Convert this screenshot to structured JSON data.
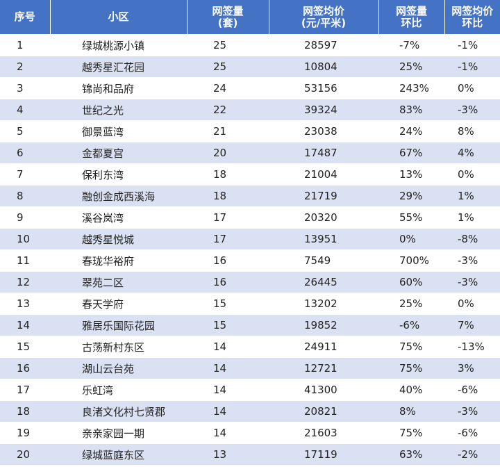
{
  "headers": {
    "rank": "序号",
    "community": "小区",
    "count_line1": "网签量",
    "count_line2": "(套)",
    "price_line1": "网签均价",
    "price_line2": "(元/平米)",
    "count_mom_line1": "网签量",
    "count_mom_line2": "环比",
    "price_mom_line1": "网签均价",
    "price_mom_line2": "环比"
  },
  "rows": [
    {
      "rank": "1",
      "name": "绿城桃源小镇",
      "count": "25",
      "price": "28597",
      "count_mom": "-7%",
      "price_mom": "-1%"
    },
    {
      "rank": "2",
      "name": "越秀星汇花园",
      "count": "25",
      "price": "10804",
      "count_mom": "25%",
      "price_mom": "-1%"
    },
    {
      "rank": "3",
      "name": "锦尚和品府",
      "count": "24",
      "price": "53156",
      "count_mom": "243%",
      "price_mom": "0%"
    },
    {
      "rank": "4",
      "name": "世纪之光",
      "count": "22",
      "price": "39324",
      "count_mom": "83%",
      "price_mom": "-3%"
    },
    {
      "rank": "5",
      "name": "御景蓝湾",
      "count": "21",
      "price": "23038",
      "count_mom": "24%",
      "price_mom": "8%"
    },
    {
      "rank": "6",
      "name": "金都夏宫",
      "count": "20",
      "price": "17487",
      "count_mom": "67%",
      "price_mom": "4%"
    },
    {
      "rank": "7",
      "name": "保利东湾",
      "count": "18",
      "price": "21004",
      "count_mom": "13%",
      "price_mom": "0%"
    },
    {
      "rank": "8",
      "name": "融创金成西溪海",
      "count": "18",
      "price": "21719",
      "count_mom": "29%",
      "price_mom": "1%"
    },
    {
      "rank": "9",
      "name": "溪谷岚湾",
      "count": "17",
      "price": "20320",
      "count_mom": "55%",
      "price_mom": "1%"
    },
    {
      "rank": "10",
      "name": "越秀星悦城",
      "count": "17",
      "price": "13951",
      "count_mom": "0%",
      "price_mom": "-8%"
    },
    {
      "rank": "11",
      "name": "春珑华裕府",
      "count": "16",
      "price": "7549",
      "count_mom": "700%",
      "price_mom": "-3%"
    },
    {
      "rank": "12",
      "name": "翠苑二区",
      "count": "16",
      "price": "26445",
      "count_mom": "60%",
      "price_mom": "-3%"
    },
    {
      "rank": "13",
      "name": "春天学府",
      "count": "15",
      "price": "13202",
      "count_mom": "25%",
      "price_mom": "0%"
    },
    {
      "rank": "14",
      "name": "雅居乐国际花园",
      "count": "15",
      "price": "19852",
      "count_mom": "-6%",
      "price_mom": "7%"
    },
    {
      "rank": "15",
      "name": "古荡新村东区",
      "count": "14",
      "price": "24911",
      "count_mom": "75%",
      "price_mom": "-13%"
    },
    {
      "rank": "16",
      "name": "湖山云台苑",
      "count": "14",
      "price": "12721",
      "count_mom": "75%",
      "price_mom": "3%"
    },
    {
      "rank": "17",
      "name": "乐虹湾",
      "count": "14",
      "price": "41300",
      "count_mom": "40%",
      "price_mom": "-6%"
    },
    {
      "rank": "18",
      "name": "良渚文化村七贤郡",
      "count": "14",
      "price": "20821",
      "count_mom": "8%",
      "price_mom": "-3%"
    },
    {
      "rank": "19",
      "name": "亲亲家园一期",
      "count": "14",
      "price": "21603",
      "count_mom": "75%",
      "price_mom": "-6%"
    },
    {
      "rank": "20",
      "name": "绿城蓝庭东区",
      "count": "13",
      "price": "17119",
      "count_mom": "63%",
      "price_mom": "-2%"
    }
  ]
}
